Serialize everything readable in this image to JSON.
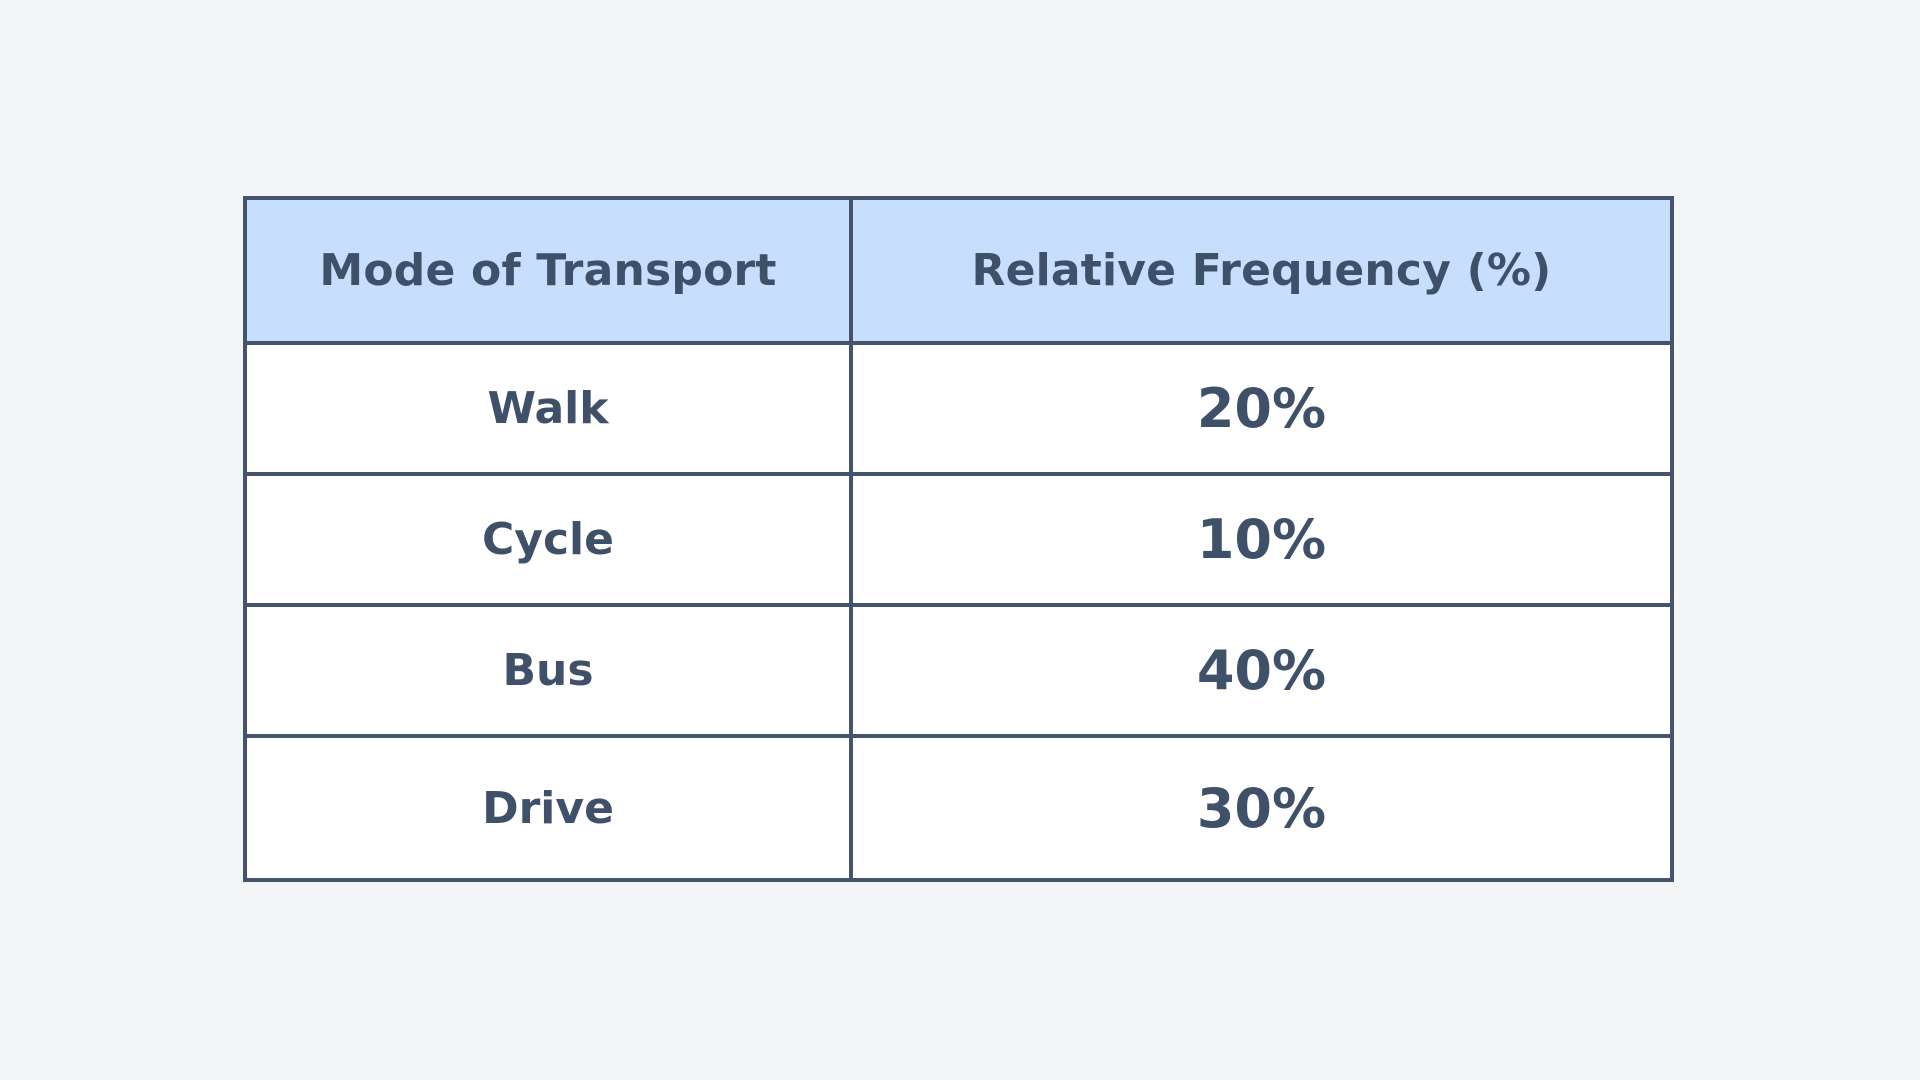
{
  "chart_data": {
    "type": "table",
    "columns": [
      "Mode of Transport",
      "Relative Frequency (%)"
    ],
    "rows": [
      {
        "mode": "Walk",
        "frequency_label": "20%",
        "frequency": 20
      },
      {
        "mode": "Cycle",
        "frequency_label": "10%",
        "frequency": 10
      },
      {
        "mode": "Bus",
        "frequency_label": "40%",
        "frequency": 40
      },
      {
        "mode": "Drive",
        "frequency_label": "30%",
        "frequency": 30
      }
    ]
  },
  "colors": {
    "background": "#f3f5f7",
    "header_fill": "#c7defd",
    "border": "#44546c",
    "text": "#3f5069",
    "cell_fill": "#ffffff"
  }
}
